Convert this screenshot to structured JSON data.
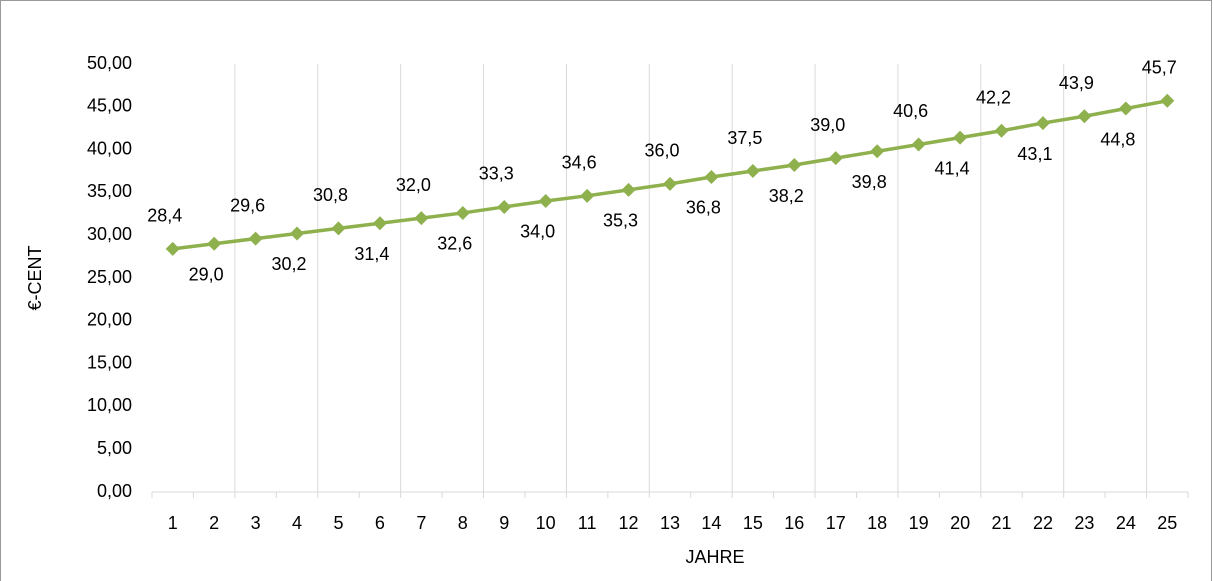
{
  "chart_data": {
    "type": "line",
    "x_label": "JAHRE",
    "y_label": "€-CENT",
    "categories": [
      "1",
      "2",
      "3",
      "4",
      "5",
      "6",
      "7",
      "8",
      "9",
      "10",
      "11",
      "12",
      "13",
      "14",
      "15",
      "16",
      "17",
      "18",
      "19",
      "20",
      "21",
      "22",
      "23",
      "24",
      "25"
    ],
    "series": [
      {
        "color": "#8eb04d",
        "values": [
          28.4,
          29.0,
          29.6,
          30.2,
          30.8,
          31.4,
          32.0,
          32.6,
          33.3,
          34.0,
          34.6,
          35.3,
          36.0,
          36.8,
          37.5,
          38.2,
          39.0,
          39.8,
          40.6,
          41.4,
          42.2,
          43.1,
          43.9,
          44.8,
          45.7
        ],
        "value_labels": [
          "28,4",
          "29,0",
          "29,6",
          "30,2",
          "30,8",
          "31,4",
          "32,0",
          "32,6",
          "33,3",
          "34,0",
          "34,6",
          "35,3",
          "36,0",
          "36,8",
          "37,5",
          "38,2",
          "39,0",
          "39,8",
          "40,6",
          "41,4",
          "42,2",
          "43,1",
          "43,9",
          "44,8",
          "45,7"
        ]
      }
    ],
    "ylim": [
      0,
      50
    ],
    "yticks": [
      {
        "value": 0,
        "label": "0,00"
      },
      {
        "value": 5,
        "label": "5,00"
      },
      {
        "value": 10,
        "label": "10,00"
      },
      {
        "value": 15,
        "label": "15,00"
      },
      {
        "value": 20,
        "label": "20,00"
      },
      {
        "value": 25,
        "label": "25,00"
      },
      {
        "value": 30,
        "label": "30,00"
      },
      {
        "value": 35,
        "label": "35,00"
      },
      {
        "value": 40,
        "label": "40,00"
      },
      {
        "value": 45,
        "label": "45,00"
      },
      {
        "value": 50,
        "label": "50,00"
      }
    ]
  }
}
